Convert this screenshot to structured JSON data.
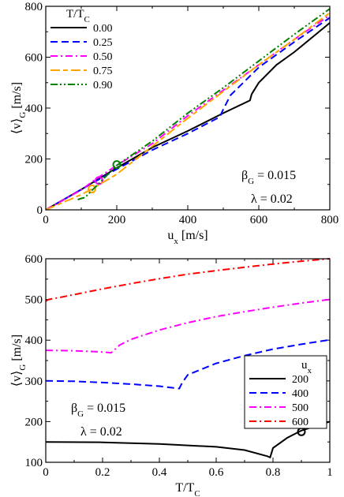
{
  "chart_data": [
    {
      "type": "line",
      "xlabel_main": "u",
      "xlabel_sub": "x",
      "xlabel_unit": " [m/s]",
      "ylabel_main": "⟨v⟩",
      "ylabel_sub": "G",
      "ylabel_unit": " [m/s]",
      "xlim": [
        0,
        800
      ],
      "ylim": [
        0,
        800
      ],
      "xticks": [
        "0",
        "200",
        "400",
        "600",
        "800"
      ],
      "yticks": [
        "0",
        "200",
        "400",
        "600",
        "800"
      ],
      "legend_title": "T/T",
      "legend_title_sub": "C",
      "legend_placement": "top-left",
      "annotations": [
        "β",
        "G",
        " = 0.015",
        "λ = 0.02"
      ],
      "series": [
        {
          "name": "0.00",
          "color": "#000000",
          "dash": "solid",
          "x": [
            0,
            100,
            200,
            300,
            400,
            500,
            575,
            580,
            600,
            650,
            700,
            800
          ],
          "y": [
            0,
            80,
            165,
            245,
            310,
            380,
            430,
            455,
            500,
            570,
            620,
            735
          ],
          "markers": []
        },
        {
          "name": "0.25",
          "color": "#0000ff",
          "dash": "dashed",
          "x": [
            0,
            100,
            200,
            300,
            400,
            490,
            500,
            520,
            600,
            700,
            800
          ],
          "y": [
            0,
            80,
            160,
            235,
            300,
            365,
            395,
            450,
            560,
            660,
            755
          ],
          "markers": []
        },
        {
          "name": "0.50",
          "color": "#ff00ff",
          "dash": "dashdot",
          "x": [
            0,
            100,
            135,
            200,
            300,
            400,
            500,
            600,
            700,
            800
          ],
          "y": [
            0,
            78,
            115,
            175,
            260,
            370,
            470,
            570,
            670,
            765
          ],
          "markers": [
            [
              150,
              115
            ]
          ]
        },
        {
          "name": "0.75",
          "color": "#ffa500",
          "dash": "dashdash",
          "x": [
            0,
            100,
            130,
            200,
            300,
            400,
            500,
            600,
            700,
            800
          ],
          "y": [
            0,
            60,
            82,
            140,
            250,
            360,
            465,
            570,
            670,
            775
          ],
          "markers": [
            [
              130,
              82
            ]
          ]
        },
        {
          "name": "0.90",
          "color": "#008000",
          "dash": "dashdotdot",
          "x": [
            90,
            100,
            110,
            200,
            300,
            400,
            500,
            600,
            700,
            800
          ],
          "y": [
            40,
            45,
            48,
            175,
            270,
            380,
            480,
            585,
            690,
            790
          ],
          "markers": [
            [
              200,
              178
            ]
          ]
        }
      ]
    },
    {
      "type": "line",
      "xlabel_main": "T/T",
      "xlabel_sub": "C",
      "ylabel_main": "⟨v⟩",
      "ylabel_sub": "G",
      "ylabel_unit": " [m/s]",
      "xlim": [
        0,
        1
      ],
      "ylim": [
        100,
        600
      ],
      "xticks": [
        "0",
        "0.2",
        "0.4",
        "0.6",
        "0.8",
        "1"
      ],
      "yticks": [
        "100",
        "200",
        "300",
        "400",
        "500",
        "600"
      ],
      "legend_title": "u",
      "legend_title_sub": "x",
      "legend_placement": "center-right",
      "annotations": [
        "β",
        "G",
        " = 0.015",
        "λ = 0.02"
      ],
      "series": [
        {
          "name": "200",
          "color": "#000000",
          "dash": "solid",
          "x": [
            0,
            0.2,
            0.4,
            0.6,
            0.7,
            0.78,
            0.79,
            0.8,
            0.85,
            0.9,
            1.0
          ],
          "y": [
            150,
            149,
            145,
            138,
            130,
            115,
            112,
            135,
            160,
            178,
            200
          ],
          "markers": [
            [
              0.9,
              175
            ]
          ]
        },
        {
          "name": "400",
          "color": "#0000ff",
          "dash": "dashed",
          "x": [
            0,
            0.1,
            0.2,
            0.3,
            0.4,
            0.47,
            0.48,
            0.5,
            0.6,
            0.7,
            0.8,
            0.9,
            1.0
          ],
          "y": [
            300,
            299,
            296,
            292,
            287,
            281,
            295,
            315,
            343,
            362,
            378,
            390,
            401
          ],
          "markers": []
        },
        {
          "name": "500",
          "color": "#ff00ff",
          "dash": "dashdot",
          "x": [
            0,
            0.1,
            0.2,
            0.23,
            0.24,
            0.26,
            0.3,
            0.4,
            0.5,
            0.6,
            0.7,
            0.8,
            0.9,
            1.0
          ],
          "y": [
            375,
            374,
            371,
            369,
            375,
            388,
            402,
            425,
            443,
            458,
            470,
            481,
            491,
            500
          ],
          "markers": []
        },
        {
          "name": "600",
          "color": "#ff0000",
          "dash": "dashdot",
          "x": [
            0,
            0.01,
            0.05,
            0.1,
            0.2,
            0.3,
            0.4,
            0.5,
            0.6,
            0.7,
            0.8,
            0.9,
            1.0
          ],
          "y": [
            496,
            500,
            505,
            512,
            526,
            539,
            551,
            562,
            571,
            579,
            587,
            594,
            600
          ],
          "markers": []
        }
      ]
    }
  ]
}
